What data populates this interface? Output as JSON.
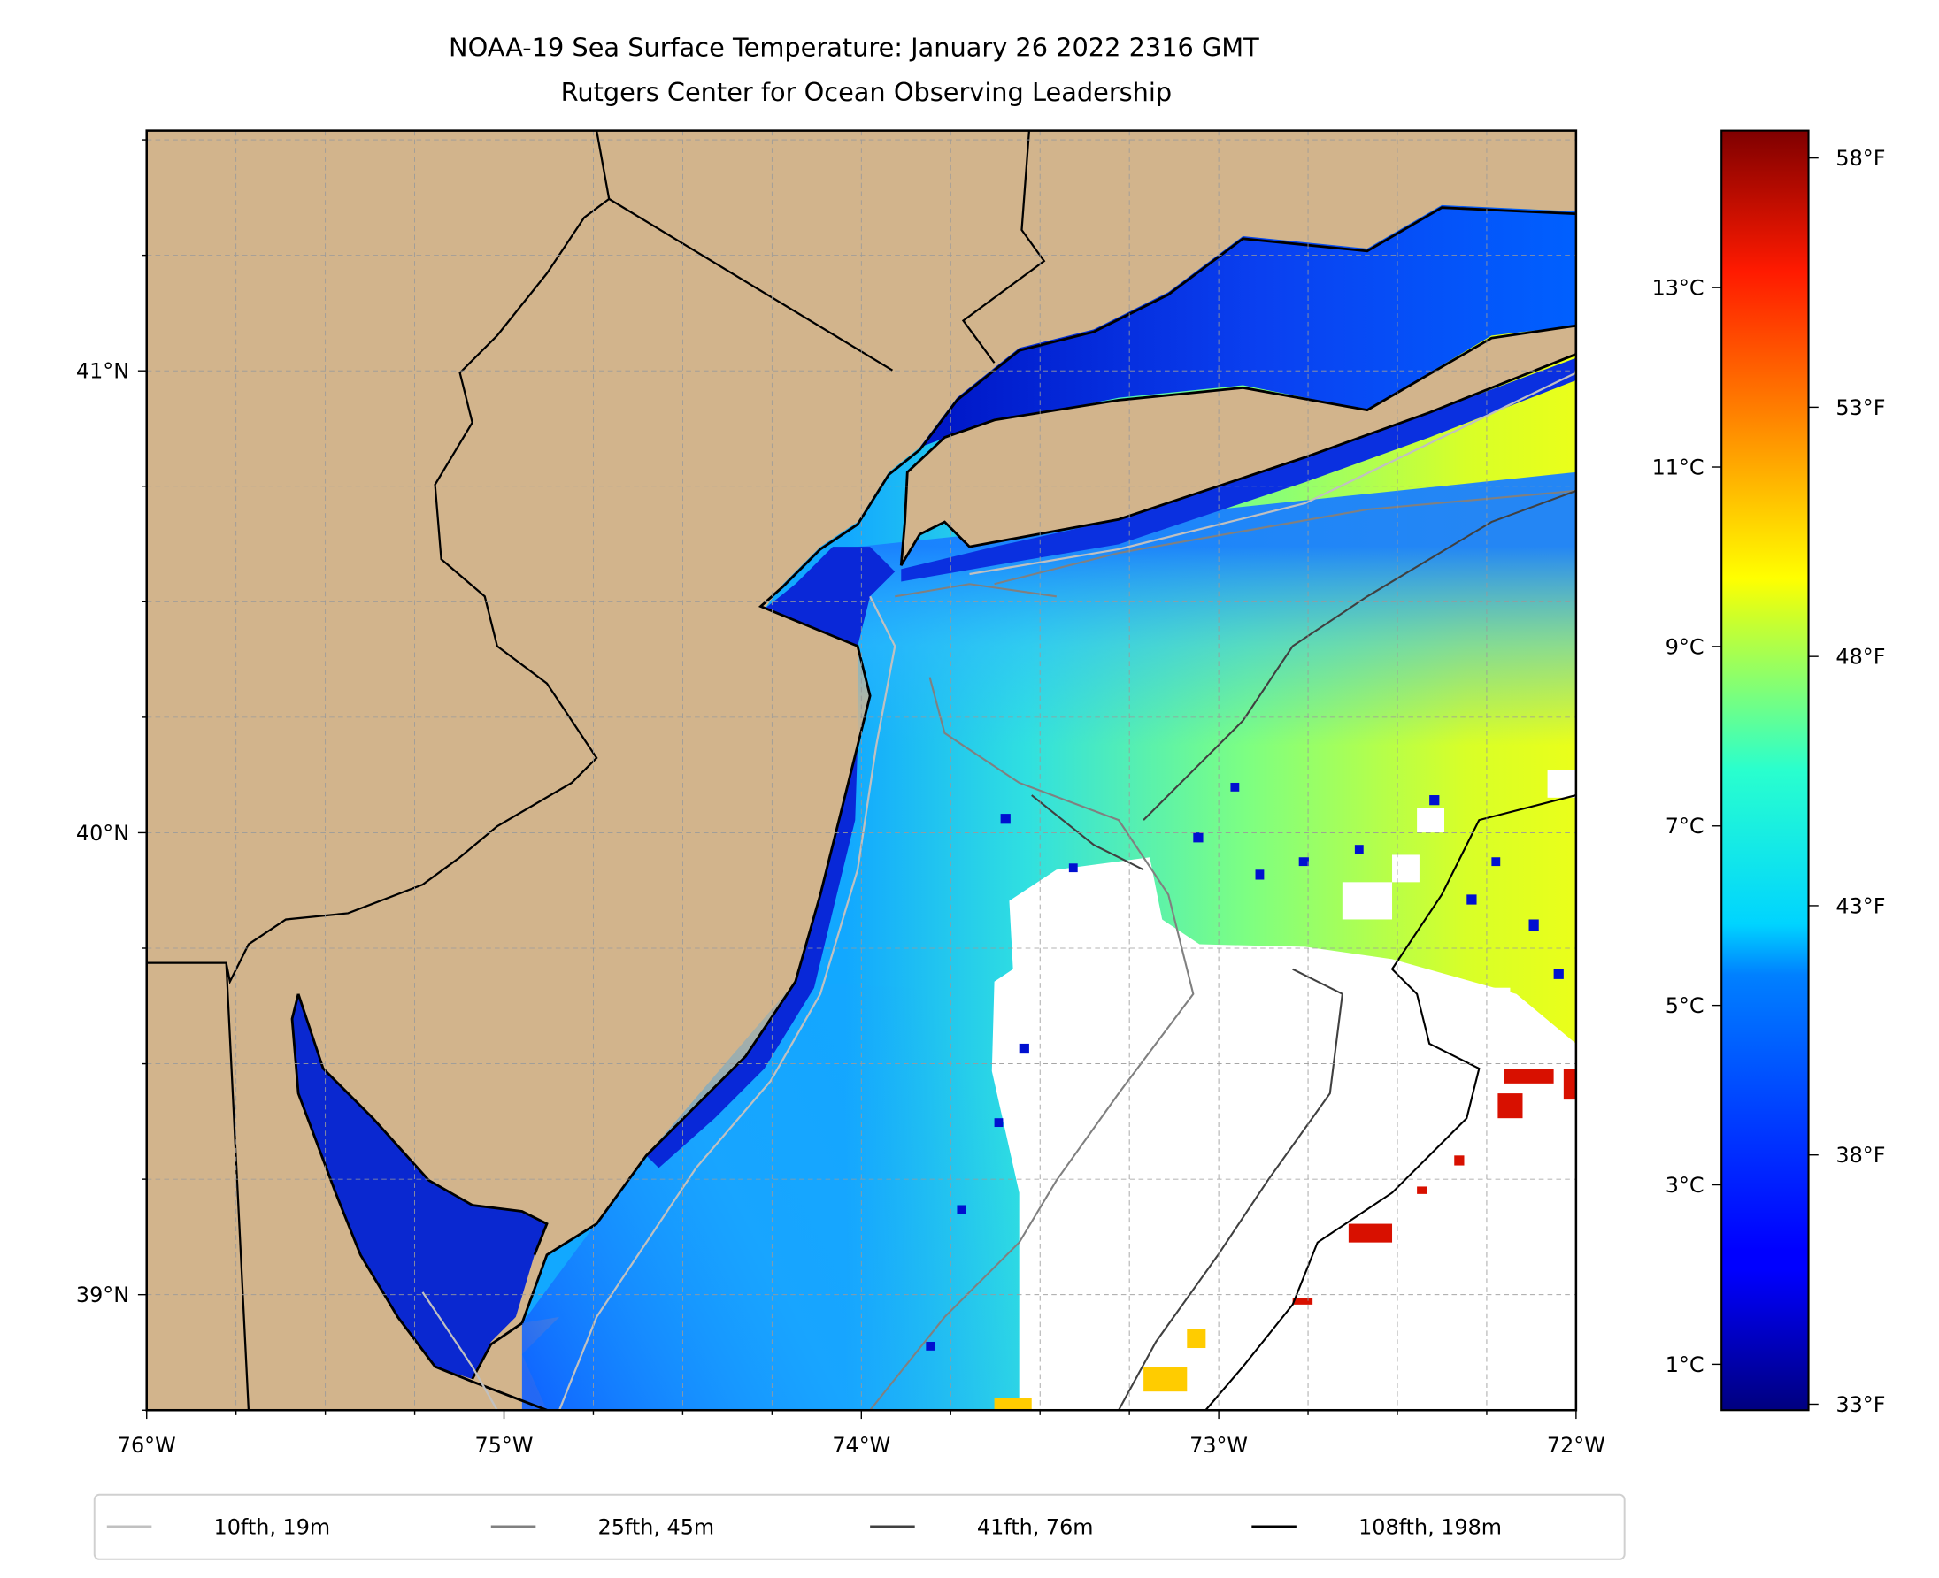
{
  "title": {
    "line1": "NOAA-19 Sea Surface Temperature: January 26 2022 2316 GMT",
    "line2": "Rutgers Center for Ocean Observing Leadership"
  },
  "map": {
    "lon_range": [
      -76,
      -72
    ],
    "lat_range": [
      38.75,
      41.52
    ],
    "x_ticks": [
      {
        "value": -76,
        "label": "76°W"
      },
      {
        "value": -75,
        "label": "75°W"
      },
      {
        "value": -74,
        "label": "74°W"
      },
      {
        "value": -73,
        "label": "73°W"
      },
      {
        "value": -72,
        "label": "72°W"
      }
    ],
    "y_ticks": [
      {
        "value": 41,
        "label": "41°N"
      },
      {
        "value": 40,
        "label": "40°N"
      },
      {
        "value": 39,
        "label": "39°N"
      }
    ],
    "gridline_step_deg": 0.25,
    "colors": {
      "land": "#d2b48c",
      "no_data": "#ffffff",
      "coast": "#000000"
    }
  },
  "colorbar": {
    "colormap": "jet",
    "range_f": [
      32.88,
      58.55
    ],
    "celsius_ticks": [
      {
        "value": 13,
        "label": "13°C"
      },
      {
        "value": 11,
        "label": "11°C"
      },
      {
        "value": 9,
        "label": "9°C"
      },
      {
        "value": 7,
        "label": "7°C"
      },
      {
        "value": 5,
        "label": "5°C"
      },
      {
        "value": 3,
        "label": "3°C"
      },
      {
        "value": 1,
        "label": "1°C"
      }
    ],
    "fahrenheit_ticks": [
      {
        "value": 58,
        "label": "58°F"
      },
      {
        "value": 53,
        "label": "53°F"
      },
      {
        "value": 48,
        "label": "48°F"
      },
      {
        "value": 43,
        "label": "43°F"
      },
      {
        "value": 38,
        "label": "38°F"
      },
      {
        "value": 33,
        "label": "33°F"
      }
    ]
  },
  "legend": {
    "items": [
      {
        "label": "10fth, 19m",
        "color": "#c0c0c0"
      },
      {
        "label": "25fth, 45m",
        "color": "#808080"
      },
      {
        "label": "41fth, 76m",
        "color": "#404040"
      },
      {
        "label": "108fth, 198m",
        "color": "#000000"
      }
    ]
  }
}
